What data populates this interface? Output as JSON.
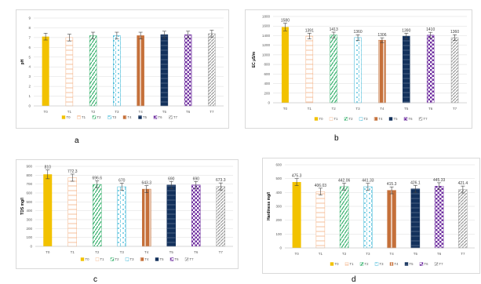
{
  "palette": {
    "T0": "#f2c200",
    "T1": "#f4b183",
    "T2": "#3cb371",
    "T3": "#35b5d6",
    "T4": "#c5703a",
    "T5": "#13315c",
    "T6": "#7030a0",
    "T7": "#9e9e9e",
    "grid": "#dcdcdc",
    "axis_text": "#595959"
  },
  "chart_data": [
    {
      "type": "bar",
      "panel_letter": "a",
      "ylabel": "pH",
      "categories": [
        "T0",
        "T1",
        "T2",
        "T3",
        "T4",
        "T5",
        "T6",
        "T7"
      ],
      "values": [
        7.1,
        7.0,
        7.2,
        7.2,
        7.2,
        7.3,
        7.3,
        7.4
      ],
      "errors": [
        0.35,
        0.35,
        0.35,
        0.35,
        0.35,
        0.35,
        0.35,
        0.35
      ],
      "data_labels": [],
      "ylim": [
        0,
        9
      ],
      "yticks": [
        "0",
        "1",
        "2",
        "3",
        "4",
        "5",
        "6",
        "7",
        "8",
        "9"
      ],
      "legend": [
        "T0",
        "T1",
        "T2",
        "T3",
        "T4",
        "T5",
        "T6",
        "T7"
      ],
      "legend_position": "bottom",
      "grid": true
    },
    {
      "type": "bar",
      "panel_letter": "b",
      "ylabel": "EC µS/m",
      "categories": [
        "T0",
        "T1",
        "T2",
        "T3",
        "T4",
        "T5",
        "T6",
        "T7"
      ],
      "values": [
        1580,
        1391,
        1413,
        1360,
        1306,
        1390,
        1410,
        1360
      ],
      "errors": [
        80,
        60,
        60,
        60,
        50,
        60,
        60,
        60
      ],
      "data_labels": [
        "1580",
        "1391",
        "1413",
        "1360",
        "1306",
        "1390",
        "1410",
        "1360"
      ],
      "ylim": [
        0,
        1800
      ],
      "yticks": [
        "0",
        "200",
        "400",
        "600",
        "800",
        "1000",
        "1200",
        "1400",
        "1600",
        "1800"
      ],
      "legend": [
        "T0",
        "T1",
        "T2",
        "T3",
        "T4",
        "T5",
        "T6",
        "T7"
      ],
      "legend_position": "bottom",
      "grid": true
    },
    {
      "type": "bar",
      "panel_letter": "c",
      "ylabel": "TDS mg/l",
      "categories": [
        "T0",
        "T1",
        "T2",
        "T3",
        "T4",
        "T5",
        "T6",
        "T7"
      ],
      "values": [
        810,
        772.3,
        696.6,
        670,
        643.3,
        690,
        690,
        673.3
      ],
      "errors": [
        50,
        40,
        40,
        40,
        40,
        40,
        40,
        40
      ],
      "data_labels": [
        "810",
        "772.3",
        "696.6",
        "670",
        "643.3",
        "690",
        "690",
        "673.3"
      ],
      "ylim": [
        0,
        900
      ],
      "yticks": [
        "0",
        "100",
        "200",
        "300",
        "400",
        "500",
        "600",
        "700",
        "800",
        "900"
      ],
      "legend": [
        "T0",
        "T1",
        "T2",
        "T3",
        "T4",
        "T5",
        "T6",
        "T7"
      ],
      "legend_position": "bottom",
      "grid": true
    },
    {
      "type": "bar",
      "panel_letter": "d",
      "ylabel": "Hardiness mg/l",
      "categories": [
        "T0",
        "T1",
        "T2",
        "T3",
        "T4",
        "T5",
        "T6",
        "T7"
      ],
      "values": [
        475.3,
        406.03,
        442.06,
        441.33,
        415.3,
        426.1,
        445.33,
        421.4
      ],
      "errors": [
        25,
        25,
        25,
        25,
        25,
        25,
        25,
        25
      ],
      "data_labels": [
        "475.3",
        "406.03",
        "442.06",
        "441.33",
        "415.3",
        "426.1",
        "445.33",
        "421.4"
      ],
      "ylim": [
        0,
        600
      ],
      "yticks": [
        "0",
        "100",
        "200",
        "300",
        "400",
        "500",
        "600"
      ],
      "legend": [
        "T0",
        "T1",
        "T2",
        "T3",
        "T4",
        "T5",
        "T6",
        "T7"
      ],
      "legend_position": "bottom",
      "grid": true
    }
  ]
}
